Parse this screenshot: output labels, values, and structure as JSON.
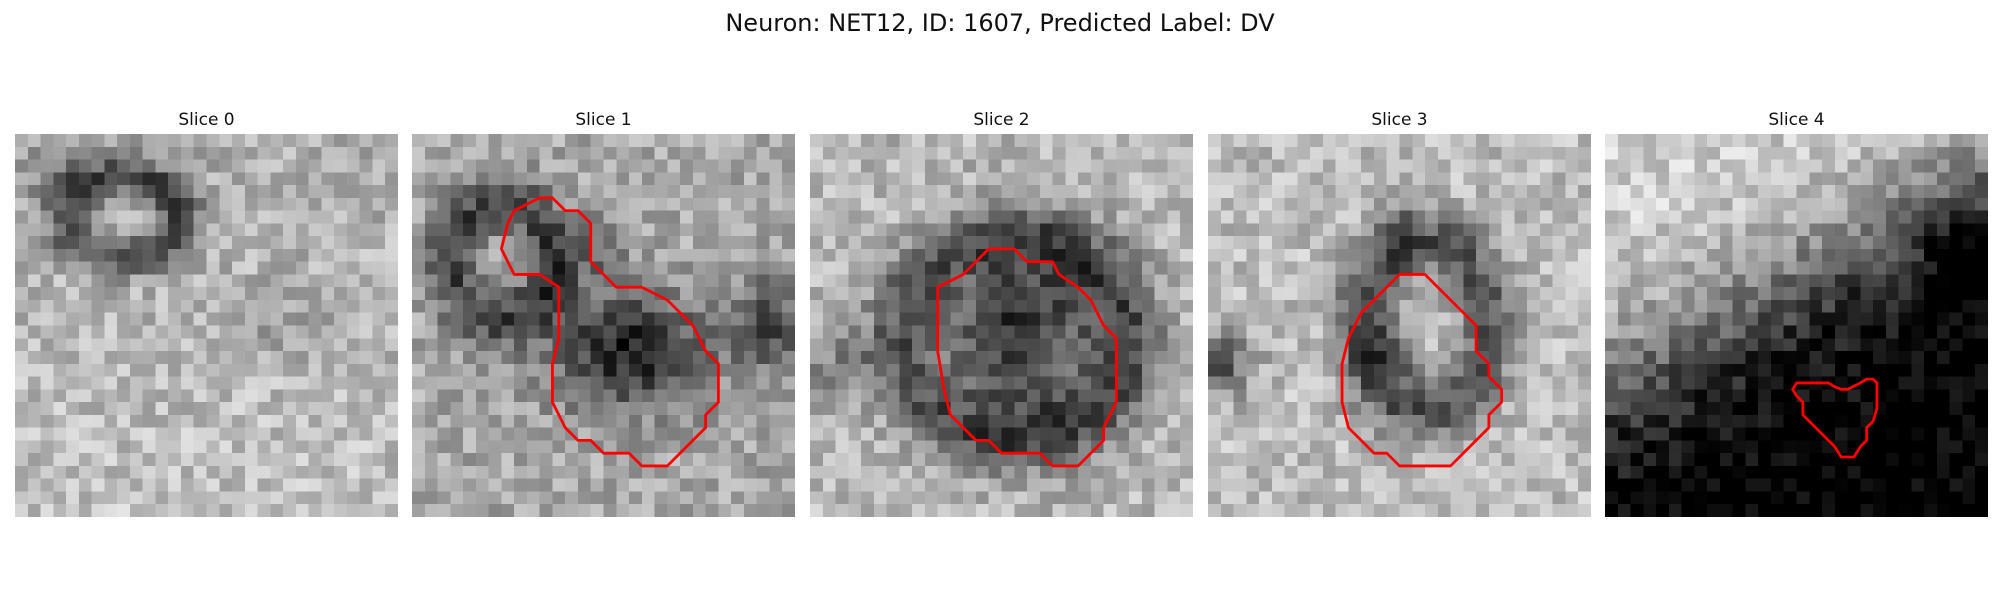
{
  "figure": {
    "title": "Neuron: NET12, ID: 1607, Predicted Label: DV"
  },
  "slices": [
    {
      "title": "Slice 0",
      "has_contour": false
    },
    {
      "title": "Slice 1",
      "has_contour": true
    },
    {
      "title": "Slice 2",
      "has_contour": true
    },
    {
      "title": "Slice 3",
      "has_contour": true
    },
    {
      "title": "Slice 4",
      "has_contour": true
    }
  ],
  "colors": {
    "contour": "#ff0000",
    "colormap": "grayscale"
  }
}
